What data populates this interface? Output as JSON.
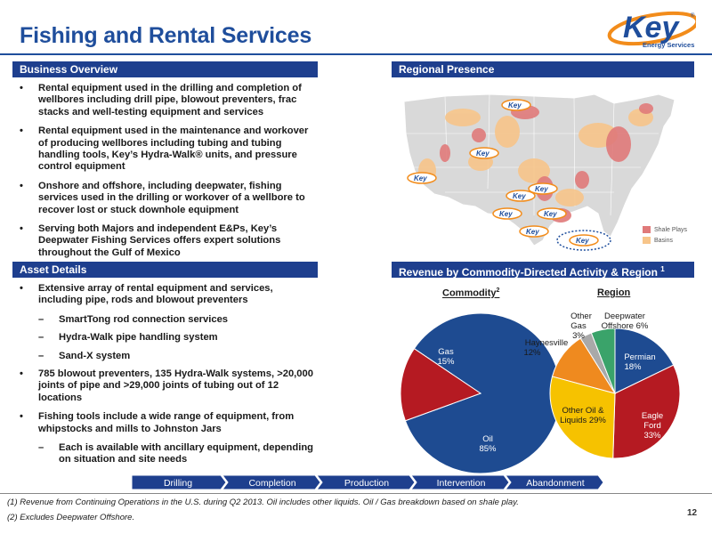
{
  "title": "Fishing and Rental Services",
  "logo": {
    "wordmark": "Key",
    "subtitle": "Energy Services",
    "registered": "®"
  },
  "sections": {
    "business_overview": "Business Overview",
    "regional_presence": "Regional Presence",
    "asset_details": "Asset Details",
    "revenue": "Revenue by Commodity-Directed Activity & Region",
    "revenue_note_ref": "1"
  },
  "business_overview_bullets": [
    "Rental equipment used in the drilling and completion of wellbores including drill pipe, blowout preventers, frac stacks and well-testing equipment and services",
    "Rental equipment used in the maintenance and workover of producing wellbores including tubing and tubing handling tools, Key’s Hydra-Walk® units, and pressure control equipment",
    "Onshore and offshore, including deepwater, fishing services used in the drilling or workover of a wellbore to recover lost or stuck downhole equipment",
    "Serving both Majors and independent E&Ps, Key’s Deepwater Fishing Services offers expert solutions throughout the Gulf of Mexico"
  ],
  "asset_details": {
    "bullet1": "Extensive array of rental equipment and services, including pipe, rods and blowout preventers",
    "bullet1_subs": [
      "SmartTong rod connection services",
      "Hydra-Walk pipe handling system",
      "Sand-X system"
    ],
    "bullet2": "785 blowout preventers, 135 Hydra-Walk systems, >20,000 joints of pipe and >29,000 joints of tubing out of 12 locations",
    "bullet3": "Fishing tools include a wide range of equipment, from whipstocks and mills to Johnston Jars",
    "bullet3_subs": [
      "Each is available with ancillary equipment, depending on situation and site needs"
    ]
  },
  "map": {
    "marker_label": "Key",
    "legend": [
      {
        "label": "Shale Plays",
        "color": "#e07a7a"
      },
      {
        "label": "Basins",
        "color": "#f7c58a"
      }
    ]
  },
  "chart_labels": {
    "commodity": "Commodity",
    "commodity_ref": "2",
    "region": "Region"
  },
  "chart_data": [
    {
      "type": "pie",
      "title": "Commodity",
      "slices": [
        {
          "name": "Oil",
          "value": 85,
          "label": "85%",
          "color": "#1e4b91"
        },
        {
          "name": "Gas",
          "value": 15,
          "label": "15%",
          "color": "#b51a22"
        }
      ]
    },
    {
      "type": "pie",
      "title": "Region",
      "slices": [
        {
          "name": "Permian",
          "value": 18,
          "label": "18%",
          "color": "#1e4b91"
        },
        {
          "name": "Eagle Ford",
          "value": 33,
          "label": "33%",
          "color": "#b51a22"
        },
        {
          "name": "Other Oil & Liquids",
          "value": 29,
          "label": "29%",
          "color": "#f6c200"
        },
        {
          "name": "Haynesville",
          "value": 12,
          "label": "12%",
          "color": "#ef8a1f"
        },
        {
          "name": "Other Gas",
          "value": 3,
          "label": "3%",
          "color": "#a9a9a9"
        },
        {
          "name": "Deepwater Offshore",
          "value": 6,
          "label": "6%",
          "color": "#3aa36a"
        }
      ]
    }
  ],
  "pie_text": {
    "oil_name": "Oil",
    "oil_pct": "85%",
    "gas_name": "Gas",
    "gas_pct": "15%",
    "permian_name": "Permian",
    "permian_pct": "18%",
    "eagle_1": "Eagle",
    "eagle_2": "Ford",
    "eagle_pct": "33%",
    "ool_1": "Other Oil &",
    "ool_2": "Liquids 29%",
    "hay_name": "Haynesville",
    "hay_pct": "12%",
    "og_1": "Other",
    "og_2": "Gas",
    "og_pct": "3%",
    "dw_1": "Deepwater",
    "dw_2": "Offshore 6%"
  },
  "lifecycle": [
    "Drilling",
    "Completion",
    "Production",
    "Intervention",
    "Abandonment"
  ],
  "footnotes": [
    "(1)   Revenue from Continuing Operations in the U.S. during Q2 2013. Oil includes other liquids. Oil / Gas breakdown based on shale play.",
    "(2)   Excludes Deepwater Offshore."
  ],
  "page_number": "12",
  "colors": {
    "brand_blue": "#1f4e9c",
    "band_blue": "#1e3f8e"
  }
}
